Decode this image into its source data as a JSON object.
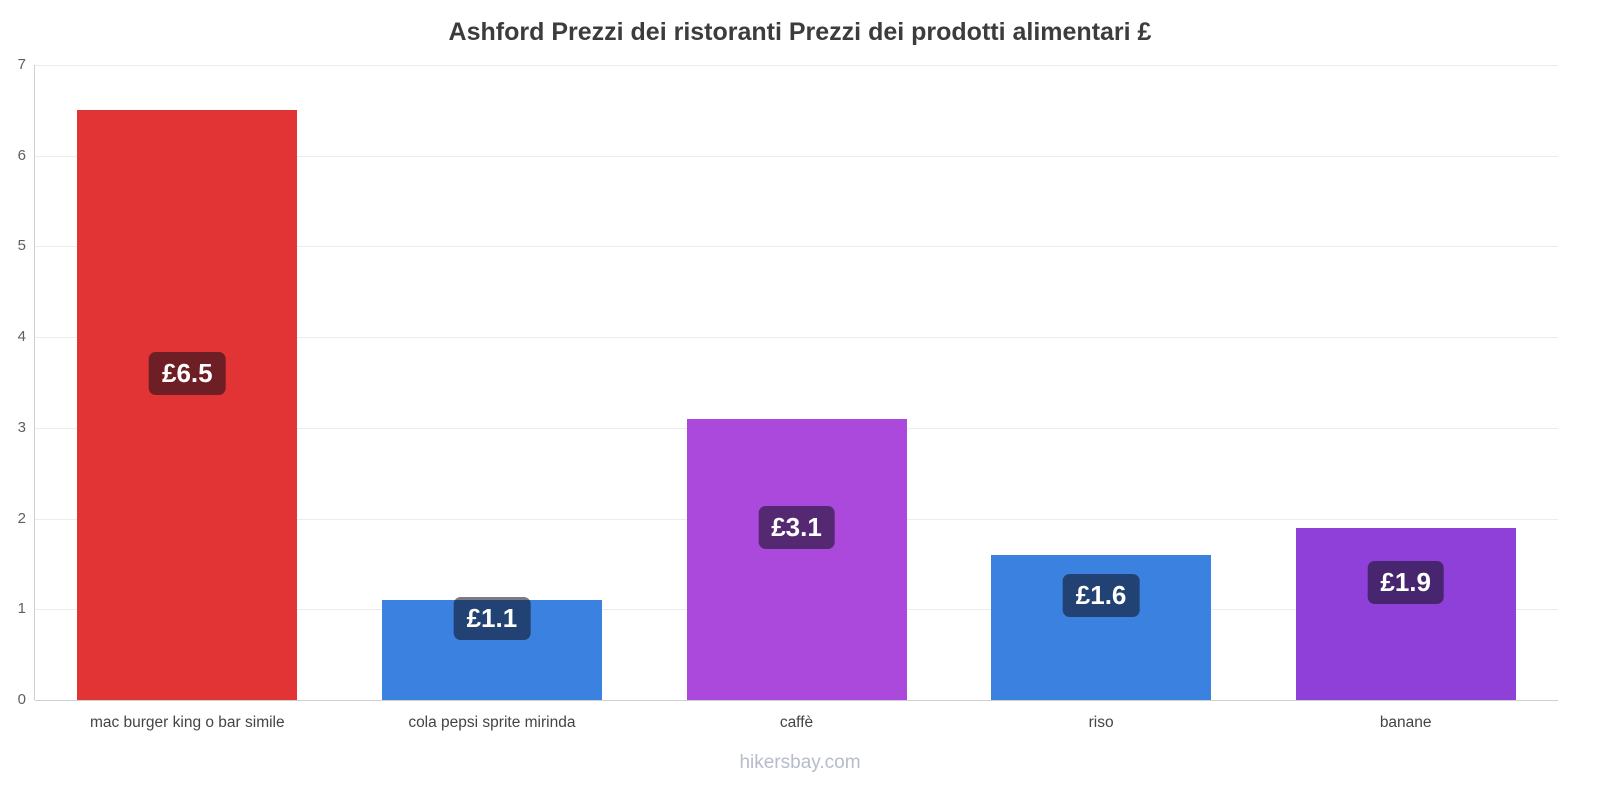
{
  "title": "Ashford Prezzi dei ristoranti Prezzi dei prodotti alimentari £",
  "footer": {
    "text": "hikersbay.com"
  },
  "chart_data": {
    "type": "bar",
    "title": "Ashford Prezzi dei ristoranti Prezzi dei prodotti alimentari £",
    "currency": "£",
    "categories": [
      "mac burger king o bar simile",
      "cola pepsi sprite mirinda",
      "caffè",
      "riso",
      "banane"
    ],
    "values": [
      6.5,
      1.1,
      3.1,
      1.6,
      1.9
    ],
    "value_labels": [
      "£6.5",
      "£1.1",
      "£3.1",
      "£1.6",
      "£1.9"
    ],
    "bar_colors": [
      "#e23434",
      "#3b82e0",
      "#ab49dd",
      "#3b82e0",
      "#8e40d8"
    ],
    "xlabel": "",
    "ylabel": "",
    "ylim": [
      0,
      7
    ],
    "yticks": [
      0,
      1,
      2,
      3,
      4,
      5,
      6,
      7
    ],
    "grid": true,
    "legend_position": "none"
  }
}
